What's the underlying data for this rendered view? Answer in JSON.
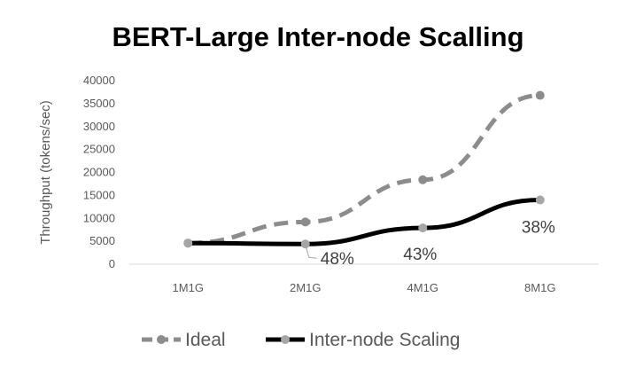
{
  "chart_data": {
    "type": "line",
    "title": "BERT-Large Inter-node Scalling",
    "xlabel": "",
    "ylabel": "Throughput (tokens/sec)",
    "categories": [
      "1M1G",
      "2M1G",
      "4M1G",
      "8M1G"
    ],
    "ylim": [
      0,
      40000
    ],
    "yticks": [
      0,
      5000,
      10000,
      15000,
      20000,
      25000,
      30000,
      35000,
      40000
    ],
    "grid": false,
    "legend": "bottom",
    "series": [
      {
        "name": "Ideal",
        "values": [
          4600,
          9200,
          18400,
          36800
        ],
        "color": "#8c8c8c",
        "style": "dashed"
      },
      {
        "name": "Inter-node Scaling",
        "values": [
          4600,
          4400,
          7900,
          14000
        ],
        "color": "#000000",
        "style": "solid",
        "data_labels": [
          "",
          "48%",
          "43%",
          "38%"
        ]
      }
    ]
  }
}
